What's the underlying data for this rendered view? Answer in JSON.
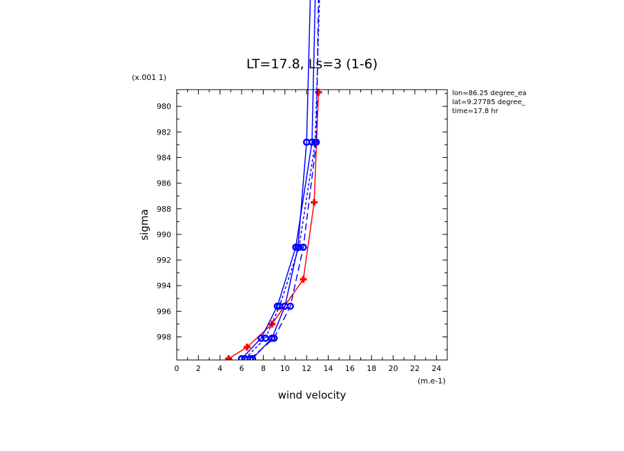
{
  "chart_data": {
    "type": "line",
    "title": "LT=17.8, Ls=3 (1-6)",
    "xlabel": "wind velocity",
    "ylabel": "sigma",
    "x_units": "(m.e-1)",
    "y_scale_note": "(x.001 1)",
    "xlim": [
      0,
      25
    ],
    "ylim": [
      999.8,
      978.7
    ],
    "y_inverted": true,
    "grid": false,
    "x_ticks": [
      0,
      2,
      4,
      6,
      8,
      10,
      12,
      14,
      16,
      18,
      20,
      22,
      24
    ],
    "y_ticks": [
      980,
      982,
      984,
      986,
      988,
      990,
      992,
      994,
      996,
      998
    ],
    "info": [
      "lon=86.25 degree_ea",
      "lat=9.27785 degree_",
      "time=17.8 hr"
    ],
    "series": [
      {
        "color": "#ff0000",
        "dash": "solid",
        "marker": "plus",
        "x": [
          4.8,
          6.5,
          8.8,
          11.7,
          12.7,
          13.1
        ],
        "y": [
          999.7,
          998.8,
          997.0,
          993.5,
          987.5,
          978.9
        ]
      },
      {
        "color": "#0000ff",
        "dash": "solid",
        "marker": "circle",
        "x": [
          6.0,
          7.8,
          9.3,
          11.0,
          12.5,
          13.1
        ],
        "y": [
          999.7,
          998.1,
          995.6,
          991.0,
          982.8,
          960.0
        ]
      },
      {
        "color": "#0000ff",
        "dash": "solid",
        "marker": "circle",
        "x": [
          7.0,
          8.8,
          10.0,
          11.2,
          12.0,
          12.7
        ],
        "y": [
          999.7,
          998.1,
          995.6,
          991.0,
          982.8,
          960.0
        ]
      },
      {
        "color": "#0000ff",
        "dash": "dashed",
        "marker": "circle",
        "x": [
          6.8,
          9.0,
          10.5,
          11.7,
          12.9,
          13.3
        ],
        "y": [
          999.7,
          998.1,
          995.6,
          991.0,
          982.8,
          960.0
        ]
      },
      {
        "color": "#0000ff",
        "dash": "dotted",
        "marker": "circle",
        "x": [
          6.3,
          8.2,
          9.5,
          11.3,
          12.8,
          13.6
        ],
        "y": [
          999.7,
          998.1,
          995.6,
          991.0,
          982.8,
          960.0
        ]
      }
    ]
  }
}
